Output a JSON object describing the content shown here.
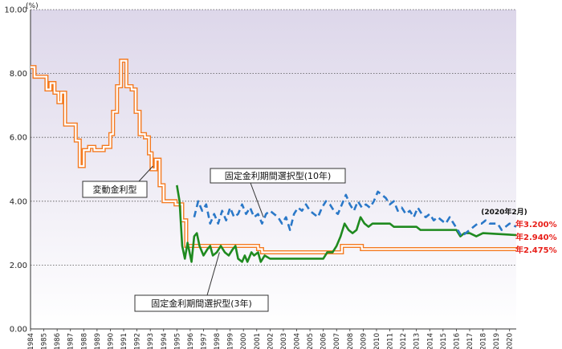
{
  "chart_data": {
    "type": "line",
    "ylabel": "(%)",
    "ylim": [
      0,
      10
    ],
    "yticks": [
      "0.00",
      "2.00",
      "4.00",
      "6.00",
      "8.00",
      "10.00"
    ],
    "xlim": [
      1984,
      2020.5
    ],
    "xticks": [
      "1984",
      "1985",
      "1986",
      "1987",
      "1988",
      "1989",
      "1990",
      "1991",
      "1992",
      "1993",
      "1994",
      "1995",
      "1996",
      "1997",
      "1998",
      "1999",
      "2000",
      "2001",
      "2002",
      "2003",
      "2004",
      "2005",
      "2006",
      "2007",
      "2008",
      "2009",
      "2010",
      "2011",
      "2012",
      "2013",
      "2014",
      "2015",
      "2016",
      "2017",
      "2018",
      "2019",
      "2020"
    ],
    "grid": "horizontal-dotted",
    "background": "gradient-lavender",
    "series": [
      {
        "key": "variable",
        "style": "double-orange",
        "color": "#f47a20",
        "points": [
          [
            1984.0,
            8.2
          ],
          [
            1984.3,
            7.9
          ],
          [
            1984.9,
            7.9
          ],
          [
            1985.2,
            7.5
          ],
          [
            1985.5,
            7.7
          ],
          [
            1985.8,
            7.4
          ],
          [
            1986.1,
            7.1
          ],
          [
            1986.3,
            7.4
          ],
          [
            1986.6,
            6.4
          ],
          [
            1987.2,
            6.4
          ],
          [
            1987.4,
            5.9
          ],
          [
            1987.7,
            5.1
          ],
          [
            1988.0,
            5.6
          ],
          [
            1988.4,
            5.7
          ],
          [
            1988.8,
            5.6
          ],
          [
            1989.5,
            5.7
          ],
          [
            1989.8,
            5.7
          ],
          [
            1990.0,
            6.1
          ],
          [
            1990.2,
            6.8
          ],
          [
            1990.5,
            7.6
          ],
          [
            1990.8,
            8.4
          ],
          [
            1991.0,
            8.4
          ],
          [
            1991.2,
            7.6
          ],
          [
            1991.6,
            7.5
          ],
          [
            1991.9,
            6.8
          ],
          [
            1992.2,
            6.1
          ],
          [
            1992.6,
            6.0
          ],
          [
            1992.9,
            5.5
          ],
          [
            1993.1,
            5.0
          ],
          [
            1993.4,
            5.3
          ],
          [
            1993.7,
            4.5
          ],
          [
            1994.0,
            4.0
          ],
          [
            1994.5,
            4.0
          ],
          [
            1994.9,
            3.9
          ],
          [
            1995.0,
            3.9
          ],
          [
            1995.4,
            3.4
          ],
          [
            1995.7,
            2.6
          ],
          [
            2000.9,
            2.6
          ],
          [
            2001.1,
            2.5
          ],
          [
            2001.4,
            2.4
          ],
          [
            2007.2,
            2.4
          ],
          [
            2007.4,
            2.6
          ],
          [
            2008.6,
            2.6
          ],
          [
            2008.9,
            2.5
          ],
          [
            2020.5,
            2.475
          ]
        ]
      },
      {
        "key": "fixed3",
        "style": "solid-green",
        "color": "#1f8a1f",
        "points": [
          [
            1995.0,
            4.5
          ],
          [
            1995.2,
            4.0
          ],
          [
            1995.4,
            2.6
          ],
          [
            1995.6,
            2.2
          ],
          [
            1995.8,
            2.7
          ],
          [
            1996.1,
            2.1
          ],
          [
            1996.3,
            2.9
          ],
          [
            1996.5,
            3.0
          ],
          [
            1996.7,
            2.6
          ],
          [
            1997.0,
            2.3
          ],
          [
            1997.3,
            2.5
          ],
          [
            1997.5,
            2.6
          ],
          [
            1997.7,
            2.3
          ],
          [
            1998.0,
            2.4
          ],
          [
            1998.3,
            2.6
          ],
          [
            1998.6,
            2.4
          ],
          [
            1998.9,
            2.3
          ],
          [
            1999.2,
            2.5
          ],
          [
            1999.4,
            2.6
          ],
          [
            1999.6,
            2.2
          ],
          [
            1999.9,
            2.1
          ],
          [
            2000.1,
            2.3
          ],
          [
            2000.3,
            2.1
          ],
          [
            2000.6,
            2.4
          ],
          [
            2000.8,
            2.3
          ],
          [
            2001.1,
            2.4
          ],
          [
            2001.3,
            2.1
          ],
          [
            2001.6,
            2.3
          ],
          [
            2002.0,
            2.2
          ],
          [
            2006.0,
            2.2
          ],
          [
            2006.3,
            2.4
          ],
          [
            2006.7,
            2.4
          ],
          [
            2007.0,
            2.6
          ],
          [
            2007.3,
            2.9
          ],
          [
            2007.6,
            3.3
          ],
          [
            2007.9,
            3.1
          ],
          [
            2008.2,
            3.0
          ],
          [
            2008.5,
            3.1
          ],
          [
            2008.8,
            3.5
          ],
          [
            2009.1,
            3.3
          ],
          [
            2009.4,
            3.2
          ],
          [
            2009.7,
            3.3
          ],
          [
            2011.0,
            3.3
          ],
          [
            2011.3,
            3.2
          ],
          [
            2013.0,
            3.2
          ],
          [
            2013.3,
            3.1
          ],
          [
            2016.0,
            3.1
          ],
          [
            2016.3,
            2.9
          ],
          [
            2016.6,
            3.0
          ],
          [
            2017.0,
            3.0
          ],
          [
            2017.5,
            2.9
          ],
          [
            2018.0,
            3.0
          ],
          [
            2020.5,
            2.94
          ]
        ]
      },
      {
        "key": "fixed10",
        "style": "dashed-blue",
        "color": "#2a78c8",
        "points": [
          [
            1996.3,
            3.5
          ],
          [
            1996.6,
            4.0
          ],
          [
            1996.9,
            3.7
          ],
          [
            1997.2,
            3.9
          ],
          [
            1997.5,
            3.3
          ],
          [
            1997.8,
            3.6
          ],
          [
            1998.1,
            3.3
          ],
          [
            1998.4,
            3.7
          ],
          [
            1998.7,
            3.4
          ],
          [
            1999.0,
            3.8
          ],
          [
            1999.3,
            3.5
          ],
          [
            1999.6,
            3.6
          ],
          [
            1999.9,
            3.9
          ],
          [
            2000.2,
            3.6
          ],
          [
            2000.5,
            3.8
          ],
          [
            2000.8,
            3.5
          ],
          [
            2001.1,
            3.6
          ],
          [
            2001.4,
            3.3
          ],
          [
            2001.7,
            3.6
          ],
          [
            2002.0,
            3.7
          ],
          [
            2002.3,
            3.6
          ],
          [
            2002.6,
            3.5
          ],
          [
            2002.9,
            3.3
          ],
          [
            2003.2,
            3.5
          ],
          [
            2003.5,
            3.1
          ],
          [
            2003.8,
            3.6
          ],
          [
            2004.1,
            3.8
          ],
          [
            2004.4,
            3.7
          ],
          [
            2004.7,
            3.9
          ],
          [
            2005.0,
            3.7
          ],
          [
            2005.3,
            3.6
          ],
          [
            2005.6,
            3.5
          ],
          [
            2005.9,
            3.8
          ],
          [
            2006.2,
            4.0
          ],
          [
            2006.5,
            3.9
          ],
          [
            2006.8,
            3.7
          ],
          [
            2007.1,
            3.6
          ],
          [
            2007.4,
            3.9
          ],
          [
            2007.7,
            4.2
          ],
          [
            2008.0,
            3.9
          ],
          [
            2008.3,
            3.7
          ],
          [
            2008.6,
            4.0
          ],
          [
            2008.9,
            3.8
          ],
          [
            2009.2,
            3.9
          ],
          [
            2009.5,
            3.8
          ],
          [
            2009.8,
            4.0
          ],
          [
            2010.1,
            4.3
          ],
          [
            2010.4,
            4.2
          ],
          [
            2010.7,
            4.1
          ],
          [
            2011.0,
            3.9
          ],
          [
            2011.3,
            4.0
          ],
          [
            2011.6,
            3.7
          ],
          [
            2011.9,
            3.8
          ],
          [
            2012.2,
            3.6
          ],
          [
            2012.5,
            3.7
          ],
          [
            2012.8,
            3.5
          ],
          [
            2013.1,
            3.8
          ],
          [
            2013.4,
            3.6
          ],
          [
            2013.7,
            3.5
          ],
          [
            2014.0,
            3.6
          ],
          [
            2014.3,
            3.4
          ],
          [
            2014.6,
            3.5
          ],
          [
            2014.9,
            3.4
          ],
          [
            2015.2,
            3.3
          ],
          [
            2015.5,
            3.5
          ],
          [
            2015.8,
            3.3
          ],
          [
            2016.1,
            3.1
          ],
          [
            2016.4,
            2.9
          ],
          [
            2016.7,
            3.0
          ],
          [
            2017.0,
            3.1
          ],
          [
            2017.3,
            3.2
          ],
          [
            2017.6,
            3.3
          ],
          [
            2017.9,
            3.3
          ],
          [
            2018.2,
            3.4
          ],
          [
            2018.5,
            3.3
          ],
          [
            2018.8,
            3.3
          ],
          [
            2019.1,
            3.3
          ],
          [
            2019.4,
            3.1
          ],
          [
            2019.7,
            3.2
          ],
          [
            2020.0,
            3.3
          ],
          [
            2020.5,
            3.2
          ]
        ]
      }
    ],
    "callouts": [
      {
        "key": "variable",
        "text": "変動金利型",
        "anchor": [
          1993.2,
          5.1
        ]
      },
      {
        "key": "fixed10",
        "text": "固定金利期間選択型(10年)",
        "anchor": [
          2001.5,
          3.5
        ]
      },
      {
        "key": "fixed3",
        "text": "固定金利期間選択型(3年)",
        "anchor": [
          1998.2,
          2.4
        ]
      }
    ],
    "end_date": "(2020年2月)",
    "end_labels": [
      {
        "key": "fixed10",
        "text": "年3.200%"
      },
      {
        "key": "fixed3",
        "text": "年2.940%"
      },
      {
        "key": "variable",
        "text": "年2.475%"
      }
    ]
  }
}
